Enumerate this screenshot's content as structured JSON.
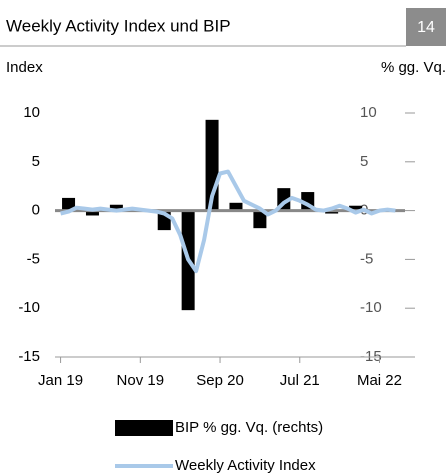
{
  "chart_data": {
    "type": "bar_line",
    "title": "Weekly Activity Index und BIP",
    "page_number": "14",
    "y_label": "Index",
    "y2_label": "% gg. Vq.",
    "xlim": [
      -0.7,
      43.2
    ],
    "xticks": [
      {
        "value": 0,
        "label": "Jan 19"
      },
      {
        "value": 10,
        "label": "Nov 19"
      },
      {
        "value": 20,
        "label": "Sep 20"
      },
      {
        "value": 30,
        "label": "Jul 21"
      },
      {
        "value": 40,
        "label": "Mai 22"
      }
    ],
    "ylim": [
      -15,
      10
    ],
    "yticks": [
      -15,
      -10,
      -5,
      0,
      5,
      10
    ],
    "y2lim": [
      -15,
      10
    ],
    "y2ticks": [
      -15,
      -10,
      -5,
      0,
      5,
      10
    ],
    "series": [
      {
        "name": "BIP % gg. Vq. (rechts)",
        "type": "bar",
        "axis": "y2",
        "color": "#000000",
        "x": [
          1,
          4,
          7,
          10,
          13,
          16,
          19,
          22,
          25,
          28,
          31,
          34,
          37,
          40
        ],
        "values": [
          1.3,
          -0.5,
          0.6,
          0.1,
          -2.0,
          -10.2,
          9.3,
          0.8,
          -1.8,
          2.3,
          1.9,
          -0.3,
          0.5,
          0.1
        ]
      },
      {
        "name": "Weekly Activity Index",
        "type": "line",
        "color": "#a9c9e9",
        "x": [
          0,
          1,
          2,
          3,
          4,
          5,
          6,
          7,
          8,
          9,
          10,
          11,
          12,
          13,
          14,
          15,
          16,
          17,
          18,
          19,
          20,
          21,
          22,
          23,
          24,
          25,
          26,
          27,
          28,
          29,
          30,
          31,
          32,
          33,
          34,
          35,
          36,
          37,
          38,
          39,
          40,
          41,
          42
        ],
        "values": [
          -0.3,
          -0.1,
          0.3,
          0.2,
          0.1,
          0.2,
          0.1,
          0,
          0.1,
          0.2,
          0.1,
          0,
          -0.1,
          -0.3,
          -0.8,
          -2.5,
          -5,
          -6.2,
          -3,
          1.5,
          3.8,
          4,
          2.5,
          1,
          0.6,
          0.2,
          -0.4,
          0,
          0.8,
          1.3,
          1,
          0.6,
          0.1,
          0,
          0.2,
          0.5,
          0.2,
          -0.2,
          0.1,
          -0.3,
          0,
          0.1,
          0
        ]
      }
    ]
  }
}
